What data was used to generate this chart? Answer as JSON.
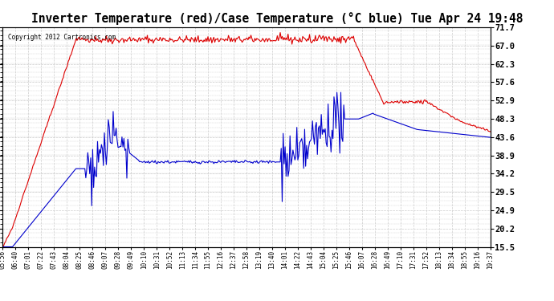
{
  "title": "Inverter Temperature (red)/Case Temperature (°C blue) Tue Apr 24 19:48",
  "copyright": "Copyright 2012 Cartronics.com",
  "ylim": [
    15.5,
    71.7
  ],
  "yticks": [
    15.5,
    20.2,
    24.9,
    29.5,
    34.2,
    38.9,
    43.6,
    48.3,
    52.9,
    57.6,
    62.3,
    67.0,
    71.7
  ],
  "bg_color": "#ffffff",
  "grid_color": "#cccccc",
  "red_color": "#dd0000",
  "blue_color": "#0000cc",
  "x_labels": [
    "05:56",
    "06:40",
    "07:01",
    "07:22",
    "07:43",
    "08:04",
    "08:25",
    "08:46",
    "09:07",
    "09:28",
    "09:49",
    "10:10",
    "10:31",
    "10:52",
    "11:13",
    "11:34",
    "11:55",
    "12:16",
    "12:37",
    "12:58",
    "13:19",
    "13:40",
    "14:01",
    "14:22",
    "14:43",
    "15:04",
    "15:25",
    "15:46",
    "16:07",
    "16:28",
    "16:49",
    "17:10",
    "17:31",
    "17:52",
    "18:13",
    "18:34",
    "18:55",
    "19:16",
    "19:37"
  ],
  "n_points": 500
}
